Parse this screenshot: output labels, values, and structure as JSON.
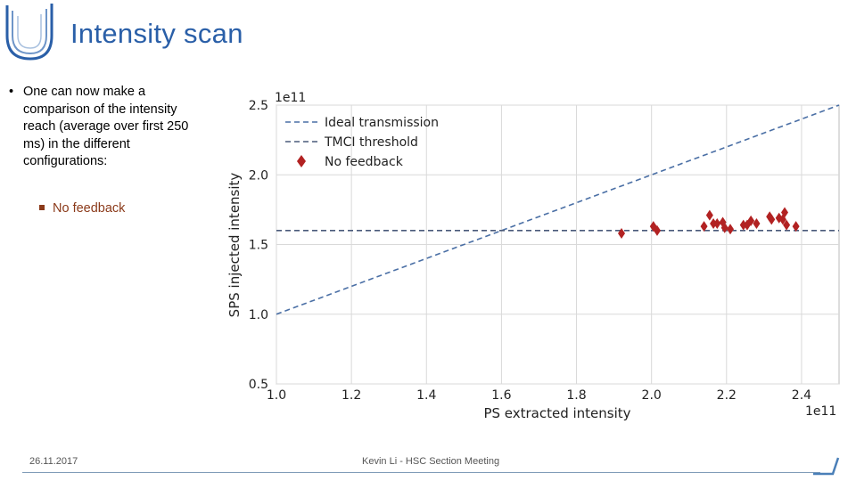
{
  "header": {
    "title": "Intensity scan"
  },
  "bullets": {
    "main": "One can now make a comparison of the intensity reach (average over first 250 ms) in the different configurations:",
    "sub": "No feedback"
  },
  "footer": {
    "date": "26.11.2017",
    "center": "Kevin Li - HSC Section Meeting"
  },
  "chart_data": {
    "type": "scatter",
    "xlabel": "PS extracted intensity",
    "ylabel": "SPS injected intensity",
    "x_multiplier": "1e11",
    "y_multiplier": "1e11",
    "xlim": [
      1.0,
      2.5
    ],
    "ylim": [
      0.5,
      2.5
    ],
    "xticks": [
      1.0,
      1.2,
      1.4,
      1.6,
      1.8,
      2.0,
      2.2,
      2.4
    ],
    "yticks": [
      0.5,
      1.0,
      1.5,
      2.0,
      2.5
    ],
    "xtick_labels": [
      "1.0",
      "1.2",
      "1.4",
      "1.6",
      "1.8",
      "2.0",
      "2.2",
      "2.4"
    ],
    "ytick_labels": [
      "0.5",
      "1.0",
      "1.5",
      "2.0",
      "2.5"
    ],
    "grid": true,
    "legend_position": "top-left",
    "legend": [
      "Ideal transmission",
      "TMCI threshold",
      "No feedback"
    ],
    "series": [
      {
        "name": "Ideal transmission",
        "style": "dashed-line",
        "color": "#4a6fa5",
        "x": [
          1.0,
          2.5
        ],
        "y": [
          1.0,
          2.5
        ]
      },
      {
        "name": "TMCI threshold",
        "style": "dashed-line",
        "color": "#4a5a7a",
        "x": [
          1.0,
          2.5
        ],
        "y": [
          1.6,
          1.6
        ]
      },
      {
        "name": "No feedback",
        "style": "diamond-markers",
        "color": "#b22222",
        "x": [
          1.92,
          2.005,
          2.015,
          2.14,
          2.155,
          2.165,
          2.175,
          2.19,
          2.195,
          2.21,
          2.245,
          2.255,
          2.265,
          2.28,
          2.315,
          2.32,
          2.34,
          2.35,
          2.355,
          2.36,
          2.385
        ],
        "y": [
          1.58,
          1.63,
          1.6,
          1.63,
          1.71,
          1.65,
          1.65,
          1.66,
          1.62,
          1.61,
          1.64,
          1.64,
          1.67,
          1.65,
          1.7,
          1.68,
          1.69,
          1.68,
          1.73,
          1.64,
          1.63
        ]
      }
    ]
  }
}
